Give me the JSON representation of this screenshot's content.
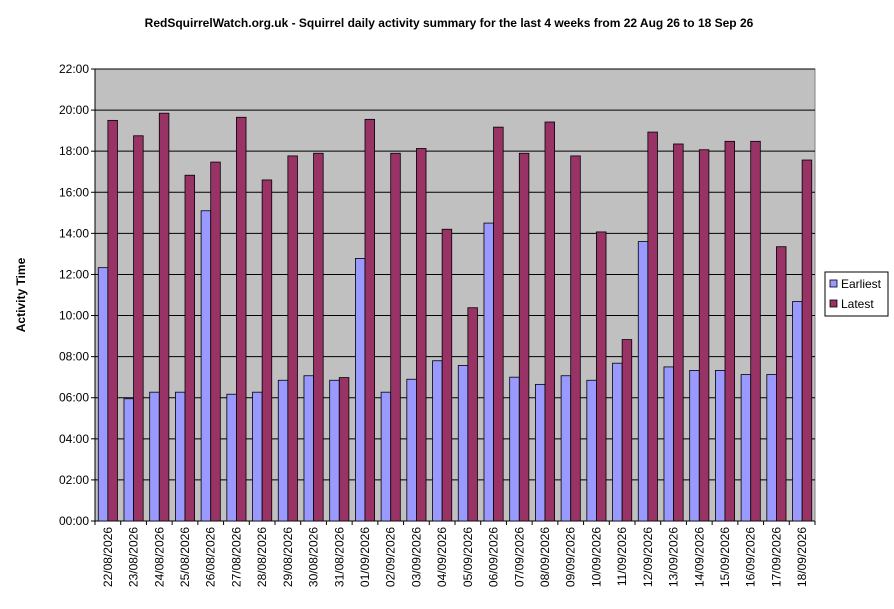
{
  "chart_data": {
    "type": "bar",
    "title": "RedSquirrelWatch.org.uk - Squirrel daily activity summary for the last 4 weeks from 22 Aug 26 to 18 Sep 26",
    "xlabel": "",
    "ylabel": "Activity Time",
    "y_unit": "hours",
    "ylim": [
      0,
      22
    ],
    "yticks": [
      0,
      2,
      4,
      6,
      8,
      10,
      12,
      14,
      16,
      18,
      20,
      22
    ],
    "ytick_labels": [
      "00:00",
      "02:00",
      "04:00",
      "06:00",
      "08:00",
      "10:00",
      "12:00",
      "14:00",
      "16:00",
      "18:00",
      "20:00",
      "22:00"
    ],
    "grid": true,
    "legend_position": "right",
    "categories": [
      "22/08/2026",
      "23/08/2026",
      "24/08/2026",
      "25/08/2026",
      "26/08/2026",
      "27/08/2026",
      "28/08/2026",
      "29/08/2026",
      "30/08/2026",
      "31/08/2026",
      "01/09/2026",
      "02/09/2026",
      "03/09/2026",
      "04/09/2026",
      "05/09/2026",
      "06/09/2026",
      "07/09/2026",
      "08/09/2026",
      "09/09/2026",
      "10/09/2026",
      "11/09/2026",
      "12/09/2026",
      "13/09/2026",
      "14/09/2026",
      "15/09/2026",
      "16/09/2026",
      "17/09/2026",
      "18/09/2026"
    ],
    "series": [
      {
        "name": "Earliest",
        "color": "#9999ff",
        "values": [
          12.33,
          5.95,
          6.27,
          6.27,
          15.1,
          6.17,
          6.27,
          6.85,
          7.07,
          6.85,
          12.78,
          6.27,
          6.9,
          7.8,
          7.57,
          14.5,
          7.0,
          6.65,
          7.07,
          6.85,
          7.68,
          13.6,
          7.5,
          7.33,
          7.33,
          7.13,
          7.13,
          10.68
        ]
      },
      {
        "name": "Latest",
        "color": "#993366",
        "values": [
          19.5,
          18.75,
          19.85,
          16.83,
          17.47,
          19.65,
          16.6,
          17.77,
          17.9,
          6.98,
          19.55,
          17.9,
          18.13,
          14.2,
          10.38,
          19.17,
          17.9,
          19.42,
          17.77,
          14.07,
          8.83,
          18.93,
          18.35,
          18.07,
          18.48,
          18.48,
          13.35,
          17.57
        ]
      }
    ]
  },
  "colors": {
    "plot_background": "#c0c0c0",
    "gridline": "#000000"
  }
}
